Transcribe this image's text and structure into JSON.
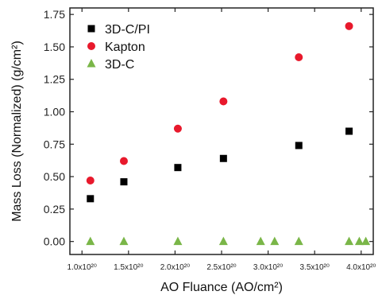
{
  "chart_data": {
    "type": "scatter",
    "xlabel": "AO Fluance (AO/cm²)",
    "ylabel": "Mass Loss (Normalized) (g/cm²)",
    "xlim": [
      0.87,
      4.13
    ],
    "ylim": [
      -0.1,
      1.8
    ],
    "x_ticks": [
      {
        "value": 1.0,
        "label": "1.0x10²⁰"
      },
      {
        "value": 1.5,
        "label": "1.5x10²⁰"
      },
      {
        "value": 2.0,
        "label": "2.0x10²⁰"
      },
      {
        "value": 2.5,
        "label": "2.5x10²⁰"
      },
      {
        "value": 3.0,
        "label": "3.0x10²⁰"
      },
      {
        "value": 3.5,
        "label": "3.5x10²⁰"
      },
      {
        "value": 4.0,
        "label": "4.0x10²⁰"
      }
    ],
    "y_ticks": [
      {
        "value": 0.0,
        "label": "0.00"
      },
      {
        "value": 0.25,
        "label": "0.25"
      },
      {
        "value": 0.5,
        "label": "0.50"
      },
      {
        "value": 0.75,
        "label": "0.75"
      },
      {
        "value": 1.0,
        "label": "1.00"
      },
      {
        "value": 1.25,
        "label": "1.25"
      },
      {
        "value": 1.5,
        "label": "1.50"
      },
      {
        "value": 1.75,
        "label": "1.75"
      }
    ],
    "legend_position": "top-left",
    "grid": false,
    "series": [
      {
        "name": "3D-C/PI",
        "marker": "square",
        "color": "#000000",
        "points": [
          [
            1.09,
            0.33
          ],
          [
            1.45,
            0.46
          ],
          [
            2.03,
            0.57
          ],
          [
            2.52,
            0.64
          ],
          [
            3.33,
            0.74
          ],
          [
            3.87,
            0.85
          ]
        ]
      },
      {
        "name": "Kapton",
        "marker": "circle",
        "color": "#e8192c",
        "points": [
          [
            1.09,
            0.47
          ],
          [
            1.45,
            0.62
          ],
          [
            2.03,
            0.87
          ],
          [
            2.52,
            1.08
          ],
          [
            3.33,
            1.42
          ],
          [
            3.87,
            1.66
          ]
        ]
      },
      {
        "name": "3D-C",
        "marker": "triangle",
        "color": "#7ab648",
        "points": [
          [
            1.09,
            0.0
          ],
          [
            1.45,
            0.0
          ],
          [
            2.03,
            0.0
          ],
          [
            2.52,
            0.0
          ],
          [
            2.92,
            0.0
          ],
          [
            3.07,
            0.0
          ],
          [
            3.33,
            0.0
          ],
          [
            3.87,
            0.0
          ],
          [
            3.98,
            0.0
          ],
          [
            4.05,
            0.0
          ]
        ]
      }
    ]
  }
}
